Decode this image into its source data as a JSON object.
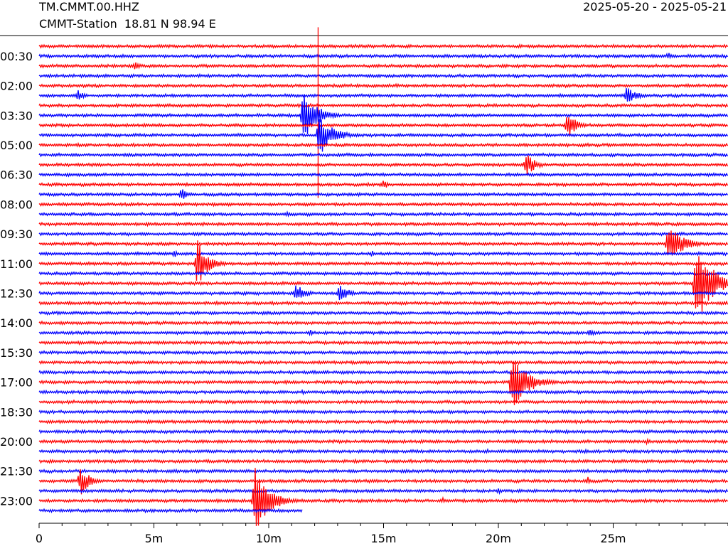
{
  "header": {
    "station_code": "TM.CMMT.00.HHZ",
    "station_desc": "CMMT-Station  18.81 N 98.94 E",
    "date_range": "2025-05-20 - 2025-05-21"
  },
  "chart_data": {
    "type": "line",
    "title": "",
    "xlabel": "",
    "ylabel": "",
    "x_range_minutes": [
      0,
      30
    ],
    "x_ticks": [
      {
        "value": 0,
        "label": "0"
      },
      {
        "value": 5,
        "label": "5m"
      },
      {
        "value": 10,
        "label": "10m"
      },
      {
        "value": 15,
        "label": "15m"
      },
      {
        "value": 20,
        "label": "20m"
      },
      {
        "value": 25,
        "label": "25m"
      }
    ],
    "x_minor_tick_minutes": 1,
    "y_ticks": [
      {
        "row": 1,
        "label": "00:30"
      },
      {
        "row": 4,
        "label": "02:00"
      },
      {
        "row": 7,
        "label": "03:30"
      },
      {
        "row": 10,
        "label": "05:00"
      },
      {
        "row": 13,
        "label": "06:30"
      },
      {
        "row": 16,
        "label": "08:00"
      },
      {
        "row": 19,
        "label": "09:30"
      },
      {
        "row": 22,
        "label": "11:00"
      },
      {
        "row": 25,
        "label": "12:30"
      },
      {
        "row": 28,
        "label": "14:00"
      },
      {
        "row": 31,
        "label": "15:30"
      },
      {
        "row": 34,
        "label": "17:00"
      },
      {
        "row": 37,
        "label": "18:30"
      },
      {
        "row": 40,
        "label": "20:00"
      },
      {
        "row": 43,
        "label": "21:30"
      },
      {
        "row": 46,
        "label": "23:00"
      }
    ],
    "rows": 48,
    "row_duration_minutes": 30,
    "last_row_end_minute": 11.5,
    "colors": [
      "#ff0000",
      "#0000ff"
    ],
    "grid": false,
    "events": [
      {
        "row": 2,
        "minute": 4.2,
        "amp": 6,
        "dur": 0.7
      },
      {
        "row": 1,
        "minute": 27.4,
        "amp": 6,
        "dur": 0.8
      },
      {
        "row": 5,
        "minute": 1.7,
        "amp": 9,
        "dur": 0.8
      },
      {
        "row": 5,
        "minute": 25.6,
        "amp": 14,
        "dur": 1.2
      },
      {
        "row": 7,
        "minute": 11.5,
        "amp": 40,
        "dur": 1.8
      },
      {
        "row": 8,
        "minute": 23.0,
        "amp": 20,
        "dur": 1.2
      },
      {
        "row": 9,
        "minute": 12.2,
        "amp": 30,
        "dur": 1.8
      },
      {
        "row": 12,
        "minute": 21.2,
        "amp": 18,
        "dur": 1.2
      },
      {
        "row": 14,
        "minute": 15.0,
        "amp": 8,
        "dur": 0.6
      },
      {
        "row": 15,
        "minute": 6.2,
        "amp": 10,
        "dur": 0.8
      },
      {
        "row": 17,
        "minute": 10.8,
        "amp": 6,
        "dur": 0.5
      },
      {
        "row": 20,
        "minute": 27.4,
        "amp": 30,
        "dur": 1.8
      },
      {
        "row": 21,
        "minute": 5.9,
        "amp": 6,
        "dur": 0.5
      },
      {
        "row": 21,
        "minute": 14.5,
        "amp": 5,
        "dur": 0.5
      },
      {
        "row": 22,
        "minute": 6.9,
        "amp": 34,
        "dur": 1.5
      },
      {
        "row": 24,
        "minute": 28.6,
        "amp": 60,
        "dur": 2.2
      },
      {
        "row": 25,
        "minute": 11.2,
        "amp": 14,
        "dur": 1.2
      },
      {
        "row": 25,
        "minute": 13.1,
        "amp": 14,
        "dur": 1.2
      },
      {
        "row": 29,
        "minute": 11.8,
        "amp": 6,
        "dur": 0.5
      },
      {
        "row": 29,
        "minute": 24.0,
        "amp": 7,
        "dur": 0.6
      },
      {
        "row": 34,
        "minute": 20.6,
        "amp": 42,
        "dur": 2.0
      },
      {
        "row": 35,
        "minute": 11.5,
        "amp": 4,
        "dur": 0.4
      },
      {
        "row": 40,
        "minute": 26.5,
        "amp": 5,
        "dur": 0.5
      },
      {
        "row": 41,
        "minute": 19.5,
        "amp": 4,
        "dur": 0.4
      },
      {
        "row": 41,
        "minute": 23.8,
        "amp": 5,
        "dur": 0.5
      },
      {
        "row": 44,
        "minute": 1.8,
        "amp": 22,
        "dur": 1.2
      },
      {
        "row": 44,
        "minute": 23.9,
        "amp": 6,
        "dur": 0.5
      },
      {
        "row": 45,
        "minute": 20.0,
        "amp": 5,
        "dur": 0.4
      },
      {
        "row": 46,
        "minute": 9.4,
        "amp": 52,
        "dur": 1.8
      },
      {
        "row": 46,
        "minute": 17.6,
        "amp": 5,
        "dur": 0.5
      }
    ],
    "spikes": [
      {
        "row": 6,
        "minute": 12.15,
        "up": 110,
        "down": 130
      }
    ]
  }
}
